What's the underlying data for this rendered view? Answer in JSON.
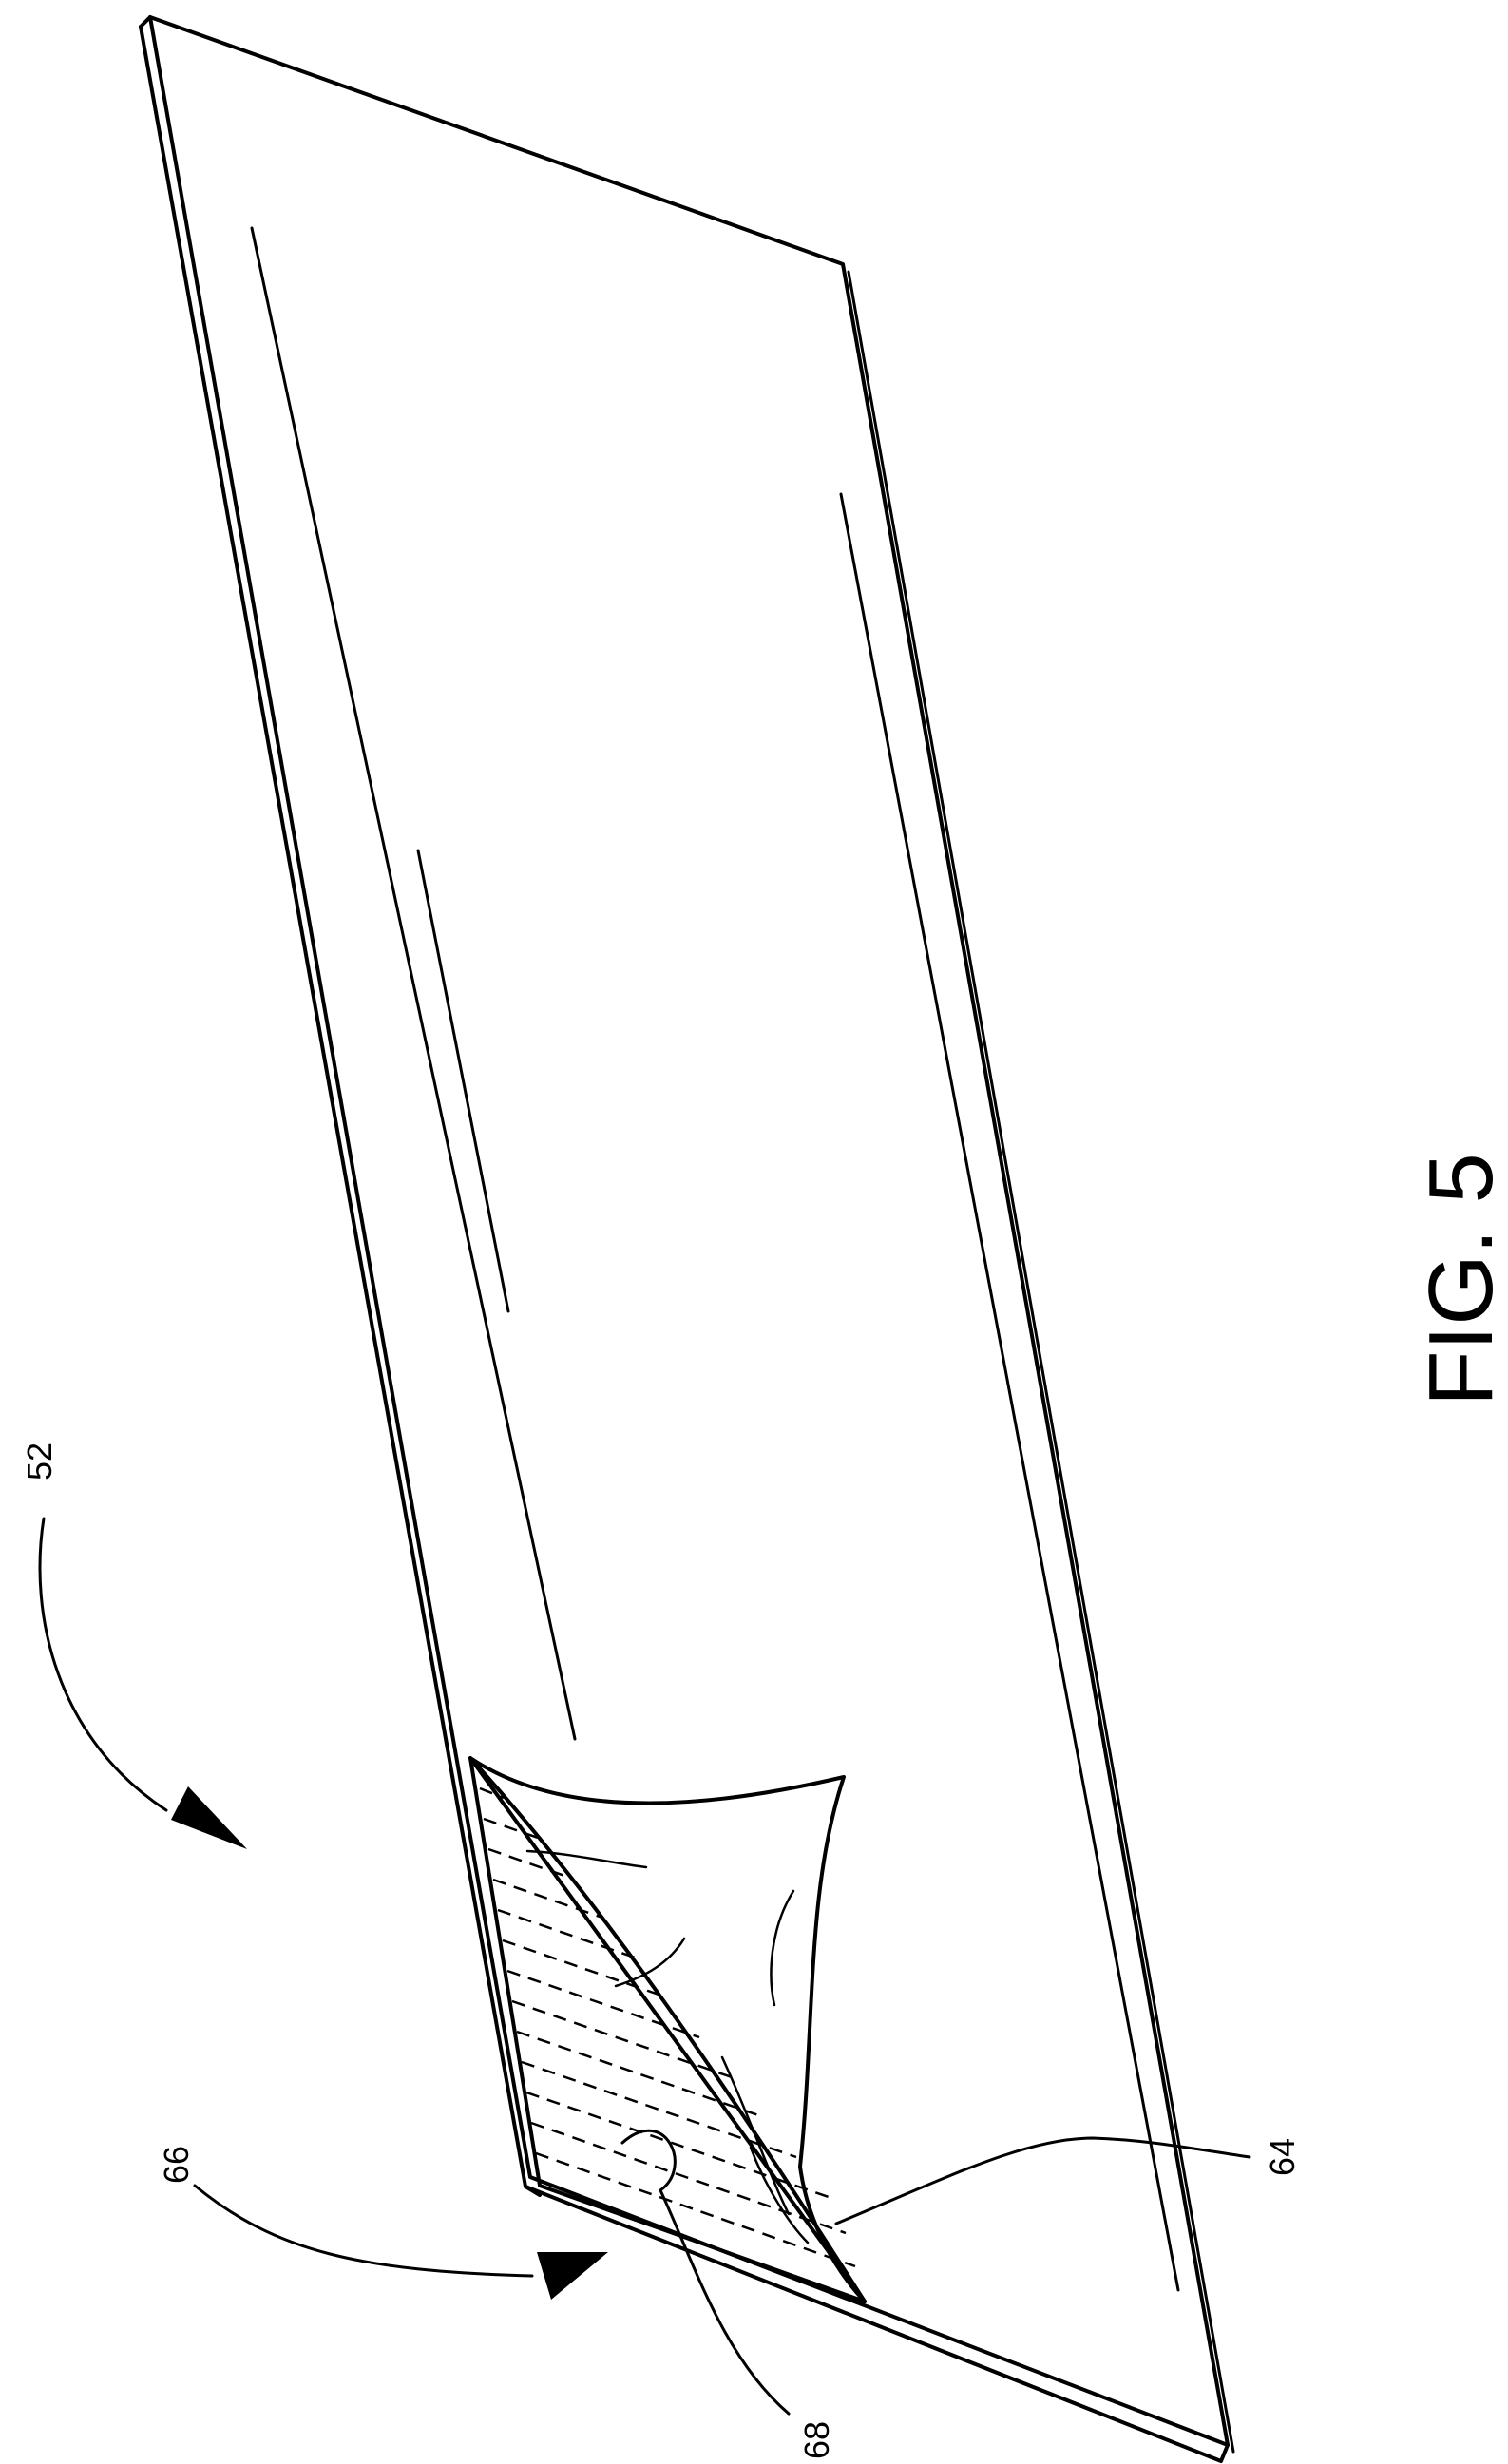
{
  "figure": {
    "caption": "FIG. 5"
  },
  "labels": {
    "label_52": "52",
    "label_64": "64",
    "label_66": "66",
    "label_68": "68"
  },
  "colors": {
    "ink": "#000000",
    "paper": "#ffffff"
  }
}
